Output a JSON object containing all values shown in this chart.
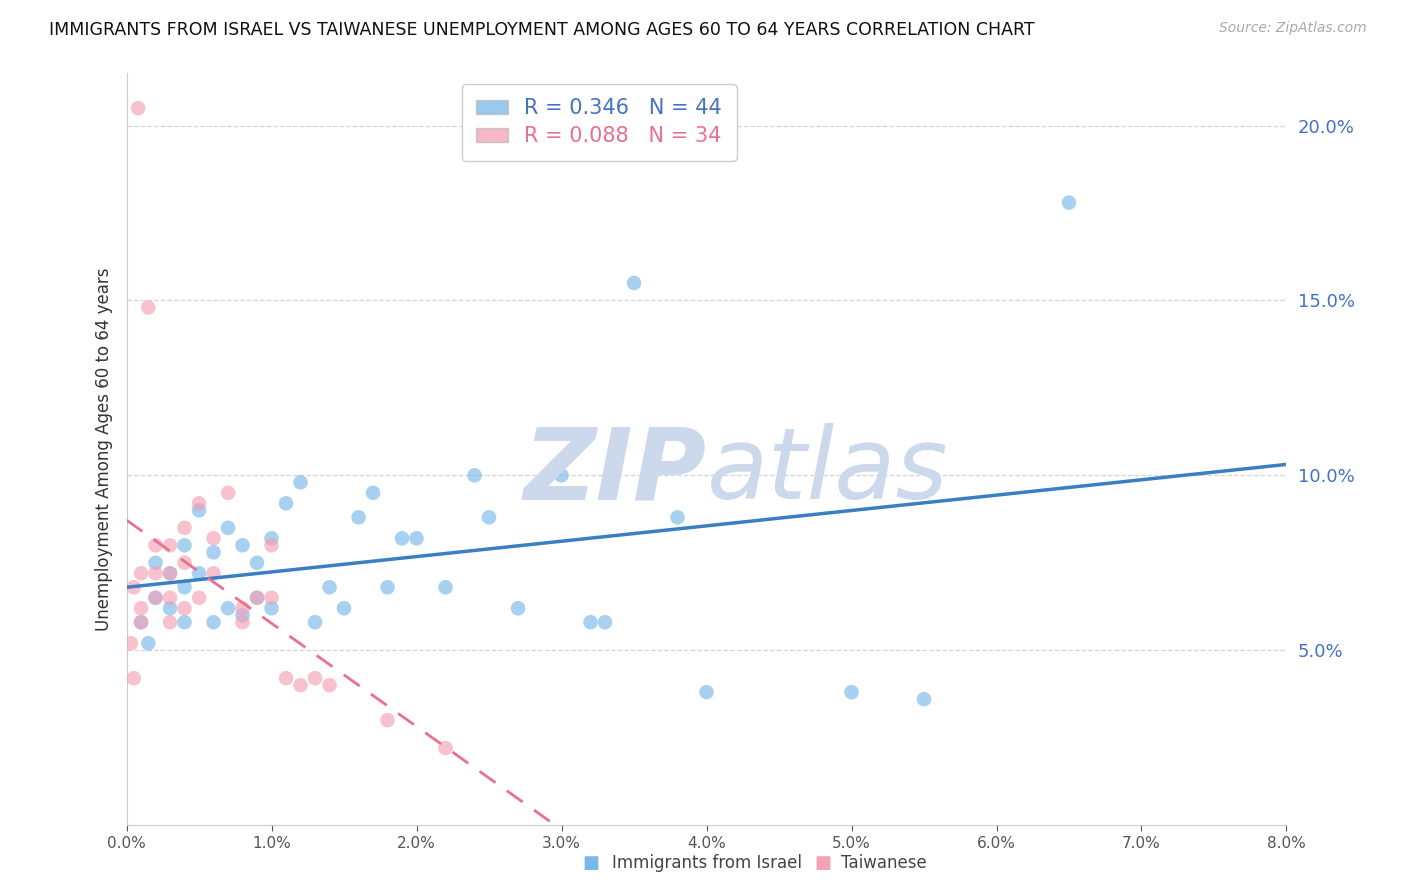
{
  "title": "IMMIGRANTS FROM ISRAEL VS TAIWANESE UNEMPLOYMENT AMONG AGES 60 TO 64 YEARS CORRELATION CHART",
  "source": "Source: ZipAtlas.com",
  "ylabel": "Unemployment Among Ages 60 to 64 years",
  "legend_label1": "Immigrants from Israel",
  "legend_label2": "Taiwanese",
  "R1": 0.346,
  "N1": 44,
  "R2": 0.088,
  "N2": 34,
  "blue_color": "#7ab8e8",
  "pink_color": "#f4a0b5",
  "blue_line_color": "#3a7fc1",
  "pink_line_color": "#e87090",
  "axis_label_color": "#4472C4",
  "xlim": [
    0,
    0.08
  ],
  "ylim": [
    0.0,
    0.215
  ],
  "yticks": [
    0.05,
    0.1,
    0.15,
    0.2
  ],
  "xticks": [
    0.0,
    0.01,
    0.02,
    0.03,
    0.04,
    0.05,
    0.06,
    0.07,
    0.08
  ],
  "blue_x": [
    0.001,
    0.0015,
    0.002,
    0.002,
    0.003,
    0.003,
    0.004,
    0.004,
    0.004,
    0.005,
    0.005,
    0.006,
    0.006,
    0.007,
    0.007,
    0.008,
    0.008,
    0.009,
    0.009,
    0.01,
    0.01,
    0.011,
    0.012,
    0.013,
    0.014,
    0.015,
    0.016,
    0.017,
    0.018,
    0.019,
    0.02,
    0.022,
    0.024,
    0.025,
    0.027,
    0.03,
    0.032,
    0.033,
    0.035,
    0.038,
    0.04,
    0.05,
    0.055,
    0.065
  ],
  "blue_y": [
    0.058,
    0.052,
    0.065,
    0.075,
    0.062,
    0.072,
    0.058,
    0.068,
    0.08,
    0.072,
    0.09,
    0.058,
    0.078,
    0.062,
    0.085,
    0.06,
    0.08,
    0.065,
    0.075,
    0.062,
    0.082,
    0.092,
    0.098,
    0.058,
    0.068,
    0.062,
    0.088,
    0.095,
    0.068,
    0.082,
    0.082,
    0.068,
    0.1,
    0.088,
    0.062,
    0.1,
    0.058,
    0.058,
    0.155,
    0.088,
    0.038,
    0.038,
    0.036,
    0.178
  ],
  "pink_x": [
    0.0003,
    0.0005,
    0.0005,
    0.0008,
    0.001,
    0.001,
    0.001,
    0.0015,
    0.002,
    0.002,
    0.002,
    0.003,
    0.003,
    0.003,
    0.003,
    0.004,
    0.004,
    0.004,
    0.005,
    0.005,
    0.006,
    0.006,
    0.007,
    0.008,
    0.008,
    0.009,
    0.01,
    0.01,
    0.011,
    0.012,
    0.013,
    0.014,
    0.018,
    0.022
  ],
  "pink_y": [
    0.052,
    0.042,
    0.068,
    0.205,
    0.058,
    0.062,
    0.072,
    0.148,
    0.065,
    0.072,
    0.08,
    0.058,
    0.065,
    0.072,
    0.08,
    0.062,
    0.075,
    0.085,
    0.065,
    0.092,
    0.072,
    0.082,
    0.095,
    0.062,
    0.058,
    0.065,
    0.065,
    0.08,
    0.042,
    0.04,
    0.042,
    0.04,
    0.03,
    0.022
  ],
  "watermark_zip": "ZIP",
  "watermark_atlas": "atlas",
  "watermark_color": "#ccd8ec",
  "background_color": "#ffffff",
  "grid_color": "#d5d5d5"
}
